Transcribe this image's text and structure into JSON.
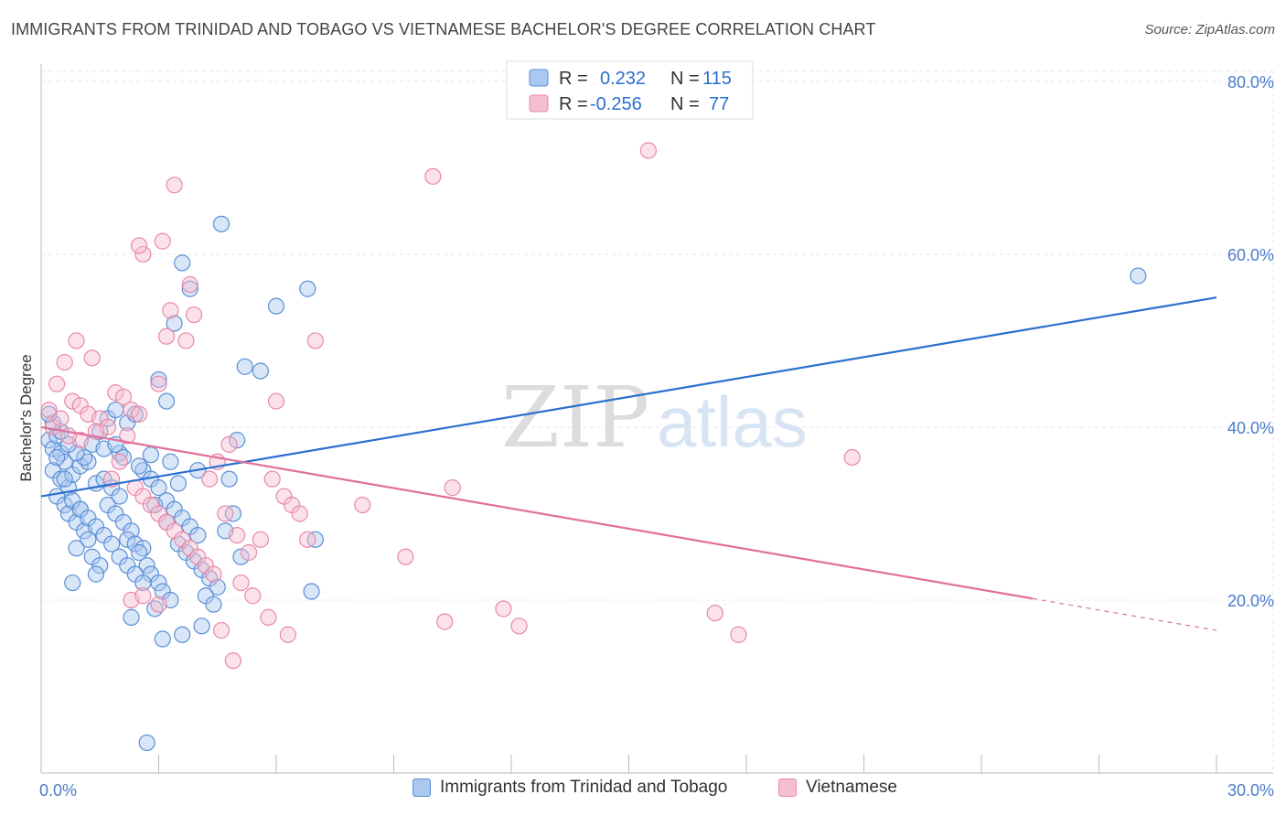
{
  "header": {
    "title": "IMMIGRANTS FROM TRINIDAD AND TOBAGO VS VIETNAMESE BACHELOR'S DEGREE CORRELATION CHART",
    "source": "Source: ZipAtlas.com"
  },
  "watermark": {
    "zip": "ZIP",
    "atlas": "atlas"
  },
  "legend": {
    "series1": {
      "r_label": "R =",
      "r_value": "0.232",
      "n_label": "N =",
      "n_value": "115"
    },
    "series2": {
      "r_label": "R =",
      "r_value": "-0.256",
      "n_label": "N =",
      "n_value": "77"
    }
  },
  "colors": {
    "series1_fill": "#aac8f0",
    "series1_stroke": "#5b8fd6",
    "series1_line": "#2b6fcf",
    "series2_fill": "#f6bfd0",
    "series2_stroke": "#e889a8",
    "series2_line": "#e0709a",
    "tick_text": "#4a7cc9"
  },
  "chart_data": {
    "type": "scatter",
    "title": "IMMIGRANTS FROM TRINIDAD AND TOBAGO VS VIETNAMESE BACHELOR'S DEGREE CORRELATION CHART",
    "xlabel": "",
    "ylabel": "Bachelor's Degree",
    "xlim": [
      0,
      30
    ],
    "ylim": [
      0,
      82
    ],
    "x_tick_labels": [
      "0.0%",
      "30.0%"
    ],
    "y_ticks": [
      20,
      40,
      60,
      80
    ],
    "y_tick_labels": [
      "20.0%",
      "40.0%",
      "60.0%",
      "80.0%"
    ],
    "grid": true,
    "legend_position": "top-center",
    "series": [
      {
        "name": "Immigrants from Trinidad and Tobago",
        "trend": {
          "x": [
            0,
            30
          ],
          "y": [
            32.0,
            55.0
          ],
          "dashed_from": null
        },
        "points": [
          [
            0.2,
            38.5
          ],
          [
            0.3,
            37.5
          ],
          [
            0.4,
            39
          ],
          [
            0.5,
            37
          ],
          [
            0.6,
            36
          ],
          [
            0.3,
            35
          ],
          [
            0.5,
            34
          ],
          [
            0.7,
            33
          ],
          [
            0.8,
            34.5
          ],
          [
            0.4,
            32
          ],
          [
            0.6,
            31
          ],
          [
            0.7,
            30
          ],
          [
            0.9,
            29
          ],
          [
            1.0,
            30.5
          ],
          [
            1.1,
            28
          ],
          [
            1.2,
            27
          ],
          [
            0.9,
            26
          ],
          [
            1.3,
            25
          ],
          [
            1.5,
            24
          ],
          [
            1.4,
            23
          ],
          [
            0.8,
            22
          ],
          [
            1.0,
            35.5
          ],
          [
            1.2,
            36
          ],
          [
            1.4,
            33.5
          ],
          [
            1.6,
            34
          ],
          [
            1.8,
            33
          ],
          [
            2.0,
            32
          ],
          [
            1.7,
            31
          ],
          [
            1.9,
            30
          ],
          [
            2.1,
            29
          ],
          [
            2.3,
            28
          ],
          [
            2.2,
            27
          ],
          [
            2.4,
            26.5
          ],
          [
            2.6,
            26
          ],
          [
            2.5,
            25.5
          ],
          [
            2.7,
            24
          ],
          [
            2.8,
            23
          ],
          [
            3.0,
            22
          ],
          [
            3.1,
            21
          ],
          [
            3.3,
            20
          ],
          [
            2.9,
            19
          ],
          [
            1.3,
            38
          ],
          [
            1.5,
            39.5
          ],
          [
            1.7,
            41
          ],
          [
            1.9,
            42
          ],
          [
            2.2,
            40.5
          ],
          [
            2.4,
            41.5
          ],
          [
            2.0,
            37
          ],
          [
            2.6,
            35
          ],
          [
            2.8,
            34
          ],
          [
            3.0,
            33
          ],
          [
            3.2,
            31.5
          ],
          [
            3.4,
            30.5
          ],
          [
            3.6,
            29.5
          ],
          [
            3.8,
            28.5
          ],
          [
            4.0,
            27.5
          ],
          [
            3.5,
            26.5
          ],
          [
            3.7,
            25.5
          ],
          [
            3.9,
            24.5
          ],
          [
            4.1,
            23.5
          ],
          [
            4.3,
            22.5
          ],
          [
            4.5,
            21.5
          ],
          [
            4.2,
            20.5
          ],
          [
            4.4,
            19.5
          ],
          [
            3.2,
            43
          ],
          [
            3.0,
            45.5
          ],
          [
            3.4,
            52
          ],
          [
            3.8,
            56
          ],
          [
            3.6,
            59
          ],
          [
            4.6,
            63.5
          ],
          [
            6.0,
            54
          ],
          [
            6.8,
            56
          ],
          [
            5.2,
            47
          ],
          [
            5.6,
            46.5
          ],
          [
            5.0,
            38.5
          ],
          [
            4.8,
            34
          ],
          [
            4.9,
            30
          ],
          [
            4.7,
            28
          ],
          [
            5.1,
            25
          ],
          [
            6.9,
            21
          ],
          [
            7.0,
            27
          ],
          [
            3.3,
            36
          ],
          [
            2.5,
            35.5
          ],
          [
            2.1,
            36.5
          ],
          [
            1.6,
            37.5
          ],
          [
            1.1,
            36.5
          ],
          [
            0.9,
            37
          ],
          [
            0.7,
            38
          ],
          [
            0.5,
            39.5
          ],
          [
            0.3,
            40.5
          ],
          [
            0.4,
            36.5
          ],
          [
            0.6,
            34
          ],
          [
            0.8,
            31.5
          ],
          [
            1.0,
            30.5
          ],
          [
            1.2,
            29.5
          ],
          [
            1.4,
            28.5
          ],
          [
            1.6,
            27.5
          ],
          [
            1.8,
            26.5
          ],
          [
            2.0,
            25
          ],
          [
            2.2,
            24
          ],
          [
            2.4,
            23
          ],
          [
            2.6,
            22
          ],
          [
            2.3,
            18
          ],
          [
            3.1,
            15.5
          ],
          [
            3.6,
            16
          ],
          [
            4.1,
            17
          ],
          [
            2.7,
            3.5
          ],
          [
            3.2,
            29
          ],
          [
            2.9,
            31
          ],
          [
            3.5,
            33.5
          ],
          [
            4.0,
            35
          ],
          [
            1.9,
            38
          ],
          [
            2.8,
            36.8
          ],
          [
            28.0,
            57.5
          ],
          [
            0.2,
            41.5
          ]
        ]
      },
      {
        "name": "Vietnamese",
        "trend": {
          "x": [
            0,
            30
          ],
          "y": [
            40.0,
            16.5
          ],
          "dashed_from": 25.3
        },
        "points": [
          [
            0.2,
            42
          ],
          [
            0.3,
            40
          ],
          [
            0.5,
            41
          ],
          [
            0.4,
            45
          ],
          [
            0.6,
            47.5
          ],
          [
            0.8,
            43
          ],
          [
            1.0,
            42.5
          ],
          [
            1.2,
            41.5
          ],
          [
            0.9,
            50
          ],
          [
            1.3,
            48
          ],
          [
            1.5,
            41
          ],
          [
            1.7,
            40
          ],
          [
            1.9,
            44
          ],
          [
            2.1,
            43.5
          ],
          [
            2.3,
            42
          ],
          [
            2.5,
            41.5
          ],
          [
            2.2,
            39
          ],
          [
            2.0,
            36
          ],
          [
            1.8,
            34
          ],
          [
            2.4,
            33
          ],
          [
            2.6,
            32
          ],
          [
            2.8,
            31
          ],
          [
            3.0,
            30
          ],
          [
            3.2,
            29
          ],
          [
            3.4,
            28
          ],
          [
            3.6,
            27
          ],
          [
            3.8,
            26
          ],
          [
            4.0,
            25
          ],
          [
            4.2,
            24
          ],
          [
            4.4,
            23
          ],
          [
            2.6,
            60
          ],
          [
            2.5,
            61
          ],
          [
            3.1,
            61.5
          ],
          [
            3.4,
            68
          ],
          [
            3.8,
            56.5
          ],
          [
            3.9,
            53
          ],
          [
            3.3,
            53.5
          ],
          [
            3.2,
            50.5
          ],
          [
            3.7,
            50
          ],
          [
            3.0,
            45
          ],
          [
            4.8,
            38
          ],
          [
            4.5,
            36
          ],
          [
            4.3,
            34
          ],
          [
            4.7,
            30
          ],
          [
            5.0,
            27.5
          ],
          [
            5.3,
            25.5
          ],
          [
            5.6,
            27
          ],
          [
            5.9,
            34
          ],
          [
            6.2,
            32
          ],
          [
            6.4,
            31
          ],
          [
            6.6,
            30
          ],
          [
            6.8,
            27
          ],
          [
            7.0,
            50
          ],
          [
            6.0,
            43
          ],
          [
            5.1,
            22
          ],
          [
            5.4,
            20.5
          ],
          [
            5.8,
            18
          ],
          [
            6.3,
            16
          ],
          [
            4.9,
            13
          ],
          [
            4.6,
            16.5
          ],
          [
            8.2,
            31
          ],
          [
            9.3,
            25
          ],
          [
            10.0,
            69
          ],
          [
            10.5,
            33
          ],
          [
            11.8,
            19
          ],
          [
            12.2,
            17
          ],
          [
            15.5,
            72
          ],
          [
            17.2,
            18.5
          ],
          [
            17.8,
            16
          ],
          [
            20.7,
            36.5
          ],
          [
            10.3,
            17.5
          ],
          [
            2.3,
            20
          ],
          [
            2.6,
            20.5
          ],
          [
            3.0,
            19.5
          ],
          [
            1.0,
            38.5
          ],
          [
            1.4,
            39.5
          ],
          [
            0.7,
            39
          ]
        ]
      }
    ]
  },
  "bottom_legend": {
    "series1_label": "Immigrants from Trinidad and Tobago",
    "series2_label": "Vietnamese"
  }
}
